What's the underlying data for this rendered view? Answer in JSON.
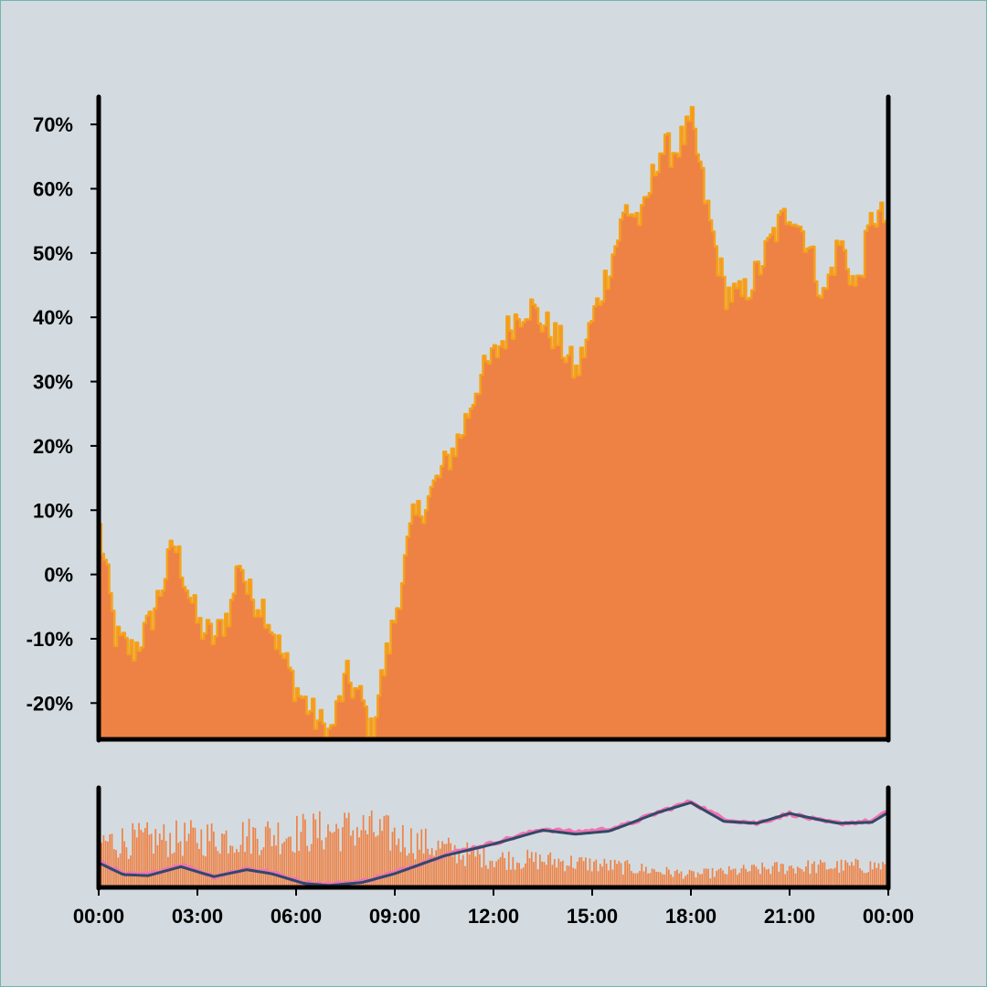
{
  "colors": {
    "background": "#d3dbe0",
    "area_fill": "#ee8245",
    "area_edge": "#f5a21a",
    "volume_bars": "#ee8245",
    "ma_fast": "#f173b4",
    "ma_slow": "#2f4a66",
    "axis": "#000000"
  },
  "chart_data": [
    {
      "type": "area",
      "title": "",
      "xlabel": "",
      "ylabel": "",
      "y_unit": "%",
      "ylim": [
        -25.5,
        74
      ],
      "y_ticks": [
        -20,
        -10,
        0,
        10,
        20,
        30,
        40,
        50,
        60,
        70
      ],
      "y_tick_labels": [
        "-20%",
        "-10%",
        "0%",
        "10%",
        "20%",
        "30%",
        "40%",
        "50%",
        "60%",
        "70%"
      ],
      "grid": false,
      "legend": "none",
      "x_start": "00:00",
      "x_end": "00:00",
      "series": [
        {
          "keypoints": [
            [
              "00:00",
              7
            ],
            [
              "00:30",
              -10
            ],
            [
              "01:00",
              -12
            ],
            [
              "01:30",
              -8
            ],
            [
              "02:00",
              0
            ],
            [
              "02:15",
              5
            ],
            [
              "02:30",
              1
            ],
            [
              "03:00",
              -8
            ],
            [
              "03:30",
              -10
            ],
            [
              "04:00",
              -5
            ],
            [
              "04:15",
              3
            ],
            [
              "04:30",
              -3
            ],
            [
              "05:00",
              -5
            ],
            [
              "05:30",
              -12
            ],
            [
              "06:00",
              -18
            ],
            [
              "06:30",
              -22
            ],
            [
              "07:00",
              -25
            ],
            [
              "07:30",
              -16
            ],
            [
              "08:00",
              -20
            ],
            [
              "08:15",
              -25
            ],
            [
              "08:30",
              -18
            ],
            [
              "09:00",
              -6
            ],
            [
              "09:30",
              8
            ],
            [
              "10:00",
              12
            ],
            [
              "10:30",
              17
            ],
            [
              "11:00",
              22
            ],
            [
              "11:30",
              30
            ],
            [
              "12:00",
              34
            ],
            [
              "12:30",
              39
            ],
            [
              "13:00",
              42
            ],
            [
              "13:30",
              39
            ],
            [
              "14:00",
              36
            ],
            [
              "14:30",
              31
            ],
            [
              "15:00",
              40
            ],
            [
              "15:30",
              48
            ],
            [
              "16:00",
              57
            ],
            [
              "16:30",
              55
            ],
            [
              "17:00",
              66
            ],
            [
              "17:30",
              66
            ],
            [
              "18:00",
              70
            ],
            [
              "18:30",
              56
            ],
            [
              "19:00",
              44
            ],
            [
              "19:30",
              43
            ],
            [
              "20:00",
              47
            ],
            [
              "20:30",
              53
            ],
            [
              "21:00",
              57
            ],
            [
              "21:30",
              52
            ],
            [
              "22:00",
              43
            ],
            [
              "22:30",
              52
            ],
            [
              "23:00",
              44
            ],
            [
              "23:30",
              56
            ],
            [
              "24:00",
              55
            ]
          ]
        }
      ]
    },
    {
      "type": "bar",
      "title": "",
      "xlabel": "",
      "ylabel": "",
      "grid": false,
      "legend": "none",
      "x_ticks": [
        "00:00",
        "03:00",
        "06:00",
        "09:00",
        "12:00",
        "15:00",
        "18:00",
        "21:00",
        "00:00"
      ],
      "series": [
        {
          "type": "bar",
          "volume_envelope_0_to_1": [
            [
              "00:00",
              0.6
            ],
            [
              "03:00",
              0.65
            ],
            [
              "06:00",
              0.72
            ],
            [
              "08:00",
              0.78
            ],
            [
              "09:00",
              0.68
            ],
            [
              "11:00",
              0.45
            ],
            [
              "12:00",
              0.38
            ],
            [
              "14:00",
              0.34
            ],
            [
              "16:00",
              0.26
            ],
            [
              "18:00",
              0.16
            ],
            [
              "21:00",
              0.26
            ],
            [
              "24:00",
              0.28
            ]
          ]
        },
        {
          "type": "line",
          "color_key": "ma_fast",
          "level_0_to_1": [
            [
              "00:00",
              0.26
            ],
            [
              "00:45",
              0.12
            ],
            [
              "01:30",
              0.12
            ],
            [
              "02:30",
              0.22
            ],
            [
              "03:30",
              0.1
            ],
            [
              "04:30",
              0.18
            ],
            [
              "05:15",
              0.14
            ],
            [
              "06:15",
              0.04
            ],
            [
              "07:00",
              0.02
            ],
            [
              "08:00",
              0.05
            ],
            [
              "09:00",
              0.14
            ],
            [
              "10:30",
              0.32
            ],
            [
              "12:00",
              0.44
            ],
            [
              "13:30",
              0.58
            ],
            [
              "14:30",
              0.55
            ],
            [
              "15:30",
              0.58
            ],
            [
              "16:00",
              0.62
            ],
            [
              "17:00",
              0.75
            ],
            [
              "18:00",
              0.86
            ],
            [
              "19:00",
              0.68
            ],
            [
              "20:00",
              0.64
            ],
            [
              "21:00",
              0.74
            ],
            [
              "22:00",
              0.66
            ],
            [
              "22:30",
              0.64
            ],
            [
              "23:30",
              0.66
            ],
            [
              "24:00",
              0.76
            ]
          ]
        },
        {
          "type": "line",
          "color_key": "ma_slow",
          "level_0_to_1": [
            [
              "00:00",
              0.24
            ],
            [
              "00:45",
              0.12
            ],
            [
              "01:30",
              0.11
            ],
            [
              "02:30",
              0.2
            ],
            [
              "03:30",
              0.1
            ],
            [
              "04:30",
              0.17
            ],
            [
              "05:15",
              0.13
            ],
            [
              "06:15",
              0.03
            ],
            [
              "07:00",
              0.01
            ],
            [
              "08:00",
              0.04
            ],
            [
              "09:00",
              0.13
            ],
            [
              "10:30",
              0.31
            ],
            [
              "12:00",
              0.43
            ],
            [
              "13:30",
              0.57
            ],
            [
              "14:30",
              0.53
            ],
            [
              "15:30",
              0.56
            ],
            [
              "16:00",
              0.62
            ],
            [
              "17:00",
              0.75
            ],
            [
              "18:00",
              0.85
            ],
            [
              "19:00",
              0.66
            ],
            [
              "20:00",
              0.64
            ],
            [
              "21:00",
              0.74
            ],
            [
              "22:00",
              0.67
            ],
            [
              "22:30",
              0.64
            ],
            [
              "23:30",
              0.65
            ],
            [
              "24:00",
              0.75
            ]
          ]
        }
      ]
    }
  ]
}
